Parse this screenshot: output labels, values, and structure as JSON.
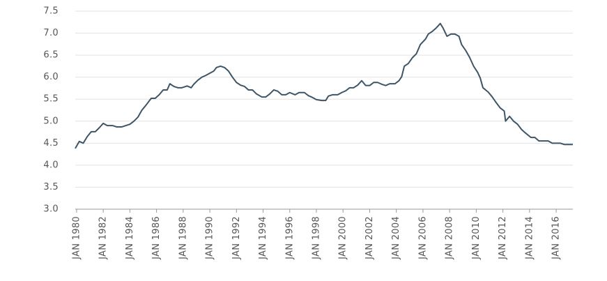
{
  "chart_data": {
    "type": "line",
    "x": [
      1979.9,
      1980.2,
      1980.5,
      1980.8,
      1981.1,
      1981.4,
      1981.7,
      1982.0,
      1982.3,
      1982.7,
      1983.0,
      1983.4,
      1983.7,
      1984.0,
      1984.3,
      1984.6,
      1984.9,
      1985.2,
      1985.6,
      1985.9,
      1986.2,
      1986.5,
      1986.8,
      1987.0,
      1987.3,
      1987.6,
      1987.9,
      1988.3,
      1988.6,
      1988.8,
      1989.1,
      1989.4,
      1989.7,
      1990.0,
      1990.3,
      1990.5,
      1990.8,
      1991.1,
      1991.4,
      1991.7,
      1992.0,
      1992.3,
      1992.6,
      1992.9,
      1993.2,
      1993.5,
      1993.9,
      1994.2,
      1994.5,
      1994.8,
      1995.1,
      1995.4,
      1995.7,
      1996.0,
      1996.4,
      1996.7,
      1997.1,
      1997.4,
      1997.7,
      1998.0,
      1998.4,
      1998.7,
      1998.9,
      1999.2,
      1999.6,
      1999.9,
      2000.2,
      2000.5,
      2000.8,
      2001.1,
      2001.4,
      2001.7,
      2002.0,
      2002.3,
      2002.6,
      2002.9,
      2003.2,
      2003.5,
      2003.9,
      2004.2,
      2004.4,
      2004.6,
      2004.9,
      2005.2,
      2005.5,
      2005.8,
      2006.2,
      2006.4,
      2006.7,
      2007.0,
      2007.3,
      2007.5,
      2007.8,
      2008.1,
      2008.4,
      2008.7,
      2008.9,
      2009.2,
      2009.5,
      2009.8,
      2010.1,
      2010.3,
      2010.5,
      2010.9,
      2011.2,
      2011.5,
      2011.8,
      2012.1,
      2012.2,
      2012.5,
      2012.8,
      2013.1,
      2013.4,
      2013.7,
      2014.1,
      2014.4,
      2014.7,
      2015.0,
      2015.4,
      2015.7,
      2016.0,
      2016.3,
      2016.6,
      2017.25
    ],
    "series": [
      {
        "color": "#3d5566",
        "values": [
          4.38,
          4.54,
          4.5,
          4.65,
          4.76,
          4.76,
          4.85,
          4.95,
          4.9,
          4.9,
          4.87,
          4.87,
          4.9,
          4.93,
          5.0,
          5.09,
          5.25,
          5.36,
          5.52,
          5.52,
          5.6,
          5.71,
          5.71,
          5.85,
          5.79,
          5.76,
          5.76,
          5.8,
          5.76,
          5.84,
          5.93,
          6.0,
          6.04,
          6.09,
          6.14,
          6.22,
          6.25,
          6.22,
          6.14,
          6.0,
          5.88,
          5.82,
          5.79,
          5.71,
          5.71,
          5.62,
          5.55,
          5.55,
          5.62,
          5.71,
          5.68,
          5.6,
          5.6,
          5.65,
          5.6,
          5.65,
          5.65,
          5.58,
          5.54,
          5.49,
          5.47,
          5.47,
          5.57,
          5.6,
          5.6,
          5.65,
          5.69,
          5.76,
          5.76,
          5.82,
          5.92,
          5.81,
          5.81,
          5.88,
          5.88,
          5.84,
          5.81,
          5.85,
          5.85,
          5.92,
          6.01,
          6.25,
          6.31,
          6.44,
          6.53,
          6.74,
          6.87,
          6.98,
          7.04,
          7.12,
          7.22,
          7.12,
          6.93,
          6.98,
          6.98,
          6.93,
          6.74,
          6.61,
          6.45,
          6.25,
          6.11,
          5.98,
          5.76,
          5.66,
          5.55,
          5.42,
          5.3,
          5.23,
          5.0,
          5.11,
          5.0,
          4.93,
          4.81,
          4.73,
          4.63,
          4.63,
          4.55,
          4.55,
          4.55,
          4.5,
          4.5,
          4.5,
          4.47,
          4.47
        ]
      }
    ],
    "xlim": [
      1979.9,
      2017.25
    ],
    "xticks": [
      {
        "value": 1980,
        "label": "JAN 1980"
      },
      {
        "value": 1982,
        "label": "JAN 1982"
      },
      {
        "value": 1984,
        "label": "JAN 1984"
      },
      {
        "value": 1986,
        "label": "JAN 1986"
      },
      {
        "value": 1988,
        "label": "JAN 1988"
      },
      {
        "value": 1990,
        "label": "JAN 1990"
      },
      {
        "value": 1992,
        "label": "JAN 1992"
      },
      {
        "value": 1994,
        "label": "JAN 1994"
      },
      {
        "value": 1996,
        "label": "JAN 1996"
      },
      {
        "value": 1998,
        "label": "JAN 1998"
      },
      {
        "value": 2000,
        "label": "JAN 2000"
      },
      {
        "value": 2002,
        "label": "JAN 2002"
      },
      {
        "value": 2004,
        "label": "JAN 2004"
      },
      {
        "value": 2006,
        "label": "JAN 2006"
      },
      {
        "value": 2008,
        "label": "JAN 2008"
      },
      {
        "value": 2010,
        "label": "JAN 2010"
      },
      {
        "value": 2012,
        "label": "JAN 2012"
      },
      {
        "value": 2014,
        "label": "JAN 2014"
      },
      {
        "value": 2016,
        "label": "JAN 2016"
      }
    ],
    "ylim": [
      3,
      7.5
    ],
    "yticks": [
      {
        "value": 3,
        "label": "3.0"
      },
      3.5,
      {
        "value": 4,
        "label": "4.0"
      },
      4.5,
      {
        "value": 5,
        "label": "5.0"
      },
      5.5,
      {
        "value": 6,
        "label": "6.0"
      },
      6.5,
      {
        "value": 7,
        "label": "7.0"
      },
      7.5
    ],
    "grid": true
  }
}
